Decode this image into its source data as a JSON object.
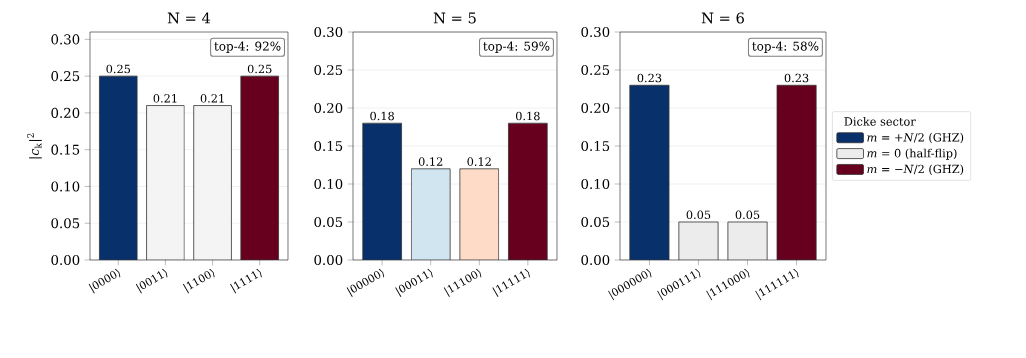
{
  "chart_data": [
    {
      "type": "bar",
      "title": "N = 4",
      "ylabel": "|*c*$_{k}$|$^{2}$",
      "categories": [
        "|0000⟩",
        "|0011⟩",
        "|1100⟩",
        "|1111⟩"
      ],
      "values": [
        0.25,
        0.21,
        0.21,
        0.25
      ],
      "colors": [
        "#08306b",
        "#f4f4f4",
        "#f4f4f4",
        "#67001f"
      ],
      "ylim": [
        0,
        0.31
      ],
      "yticks": [
        {
          "value": 0,
          "label": "0.00"
        },
        {
          "value": 0.05,
          "label": "0.05"
        },
        {
          "value": 0.1,
          "label": "0.10"
        },
        {
          "value": 0.15,
          "label": "0.15"
        },
        {
          "value": 0.2,
          "label": "0.20"
        },
        {
          "value": 0.25,
          "label": "0.25"
        },
        {
          "value": 0.3,
          "label": "0.30"
        }
      ],
      "grid": "y",
      "data_labels": true,
      "annotations": [
        "top-4: 92%"
      ]
    },
    {
      "type": "bar",
      "title": "N = 5",
      "categories": [
        "|00000⟩",
        "|00011⟩",
        "|11100⟩",
        "|11111⟩"
      ],
      "values": [
        0.18,
        0.12,
        0.12,
        0.18
      ],
      "colors": [
        "#08306b",
        "#d1e5f0",
        "#fddbc7",
        "#67001f"
      ],
      "ylim": [
        0,
        0.3
      ],
      "yticks": [
        {
          "value": 0,
          "label": "0.00"
        },
        {
          "value": 0.05,
          "label": "0.05"
        },
        {
          "value": 0.1,
          "label": "0.10"
        },
        {
          "value": 0.15,
          "label": "0.15"
        },
        {
          "value": 0.2,
          "label": "0.20"
        },
        {
          "value": 0.25,
          "label": "0.25"
        },
        {
          "value": 0.3,
          "label": "0.30"
        }
      ],
      "grid": "y",
      "data_labels": true,
      "annotations": [
        "top-4: 59%"
      ]
    },
    {
      "type": "bar",
      "title": "N = 6",
      "legend_title": "Dicke sector",
      "legend": "right",
      "categories": [
        "|000000⟩",
        "|000111⟩",
        "|111000⟩",
        "|111111⟩"
      ],
      "series": [
        {
          "name": "*m* = +*N*/2  (GHZ)",
          "color": "#08306b",
          "values": [
            0.23,
            null,
            null,
            null
          ]
        },
        {
          "name": "*m* = 0  (half-flip)",
          "color": "#ececec",
          "values": [
            null,
            0.05,
            0.05,
            null
          ]
        },
        {
          "name": "*m* = −*N*/2  (GHZ)",
          "color": "#67001f",
          "values": [
            null,
            null,
            null,
            0.23
          ]
        }
      ],
      "ylim": [
        0,
        0.3
      ],
      "yticks": [
        {
          "value": 0,
          "label": "0.00"
        },
        {
          "value": 0.05,
          "label": "0.05"
        },
        {
          "value": 0.1,
          "label": "0.10"
        },
        {
          "value": 0.15,
          "label": "0.15"
        },
        {
          "value": 0.2,
          "label": "0.20"
        },
        {
          "value": 0.25,
          "label": "0.25"
        },
        {
          "value": 0.3,
          "label": "0.30"
        }
      ],
      "grid": "y",
      "data_labels": true,
      "annotations": [
        "top-4: 58%"
      ]
    }
  ]
}
